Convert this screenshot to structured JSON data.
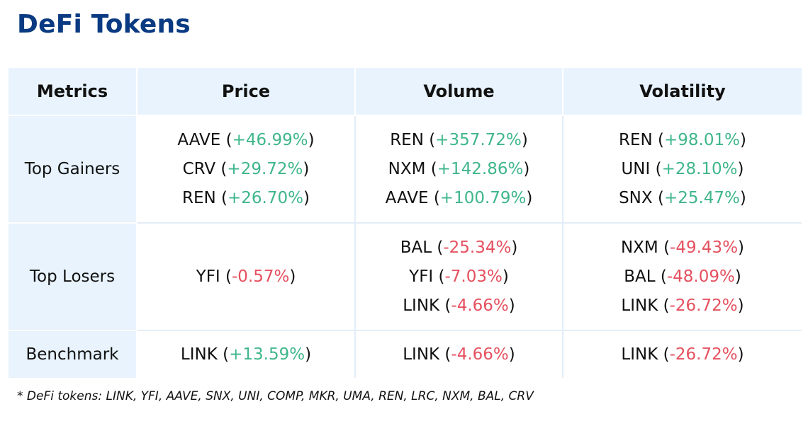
{
  "title": "DeFi Tokens",
  "colors": {
    "title": "#0a3a82",
    "header_bg": "#e8f3fd",
    "positive": "#3fb68b",
    "negative": "#e5505f"
  },
  "table": {
    "headers": [
      "Metrics",
      "Price",
      "Volume",
      "Volatility"
    ],
    "rows": [
      {
        "label": "Top Gainers",
        "cells": [
          [
            {
              "token": "AAVE",
              "change": "+46.99%",
              "dir": "pos"
            },
            {
              "token": "CRV",
              "change": "+29.72%",
              "dir": "pos"
            },
            {
              "token": "REN",
              "change": "+26.70%",
              "dir": "pos"
            }
          ],
          [
            {
              "token": "REN",
              "change": "+357.72%",
              "dir": "pos"
            },
            {
              "token": "NXM",
              "change": "+142.86%",
              "dir": "pos"
            },
            {
              "token": "AAVE",
              "change": "+100.79%",
              "dir": "pos"
            }
          ],
          [
            {
              "token": "REN",
              "change": "+98.01%",
              "dir": "pos"
            },
            {
              "token": "UNI",
              "change": "+28.10%",
              "dir": "pos"
            },
            {
              "token": "SNX",
              "change": "+25.47%",
              "dir": "pos"
            }
          ]
        ]
      },
      {
        "label": "Top Losers",
        "cells": [
          [
            {
              "token": "YFI",
              "change": "-0.57%",
              "dir": "neg"
            }
          ],
          [
            {
              "token": "BAL",
              "change": "-25.34%",
              "dir": "neg"
            },
            {
              "token": "YFI",
              "change": "-7.03%",
              "dir": "neg"
            },
            {
              "token": "LINK",
              "change": "-4.66%",
              "dir": "neg"
            }
          ],
          [
            {
              "token": "NXM",
              "change": "-49.43%",
              "dir": "neg"
            },
            {
              "token": "BAL",
              "change": "-48.09%",
              "dir": "neg"
            },
            {
              "token": "LINK",
              "change": "-26.72%",
              "dir": "neg"
            }
          ]
        ]
      },
      {
        "label": "Benchmark",
        "cells": [
          [
            {
              "token": "LINK",
              "change": "+13.59%",
              "dir": "pos"
            }
          ],
          [
            {
              "token": "LINK",
              "change": "-4.66%",
              "dir": "neg"
            }
          ],
          [
            {
              "token": "LINK",
              "change": "-26.72%",
              "dir": "neg"
            }
          ]
        ]
      }
    ]
  },
  "footnote": "* DeFi tokens: LINK, YFI, AAVE, SNX, UNI, COMP, MKR, UMA, REN, LRC, NXM, BAL, CRV"
}
